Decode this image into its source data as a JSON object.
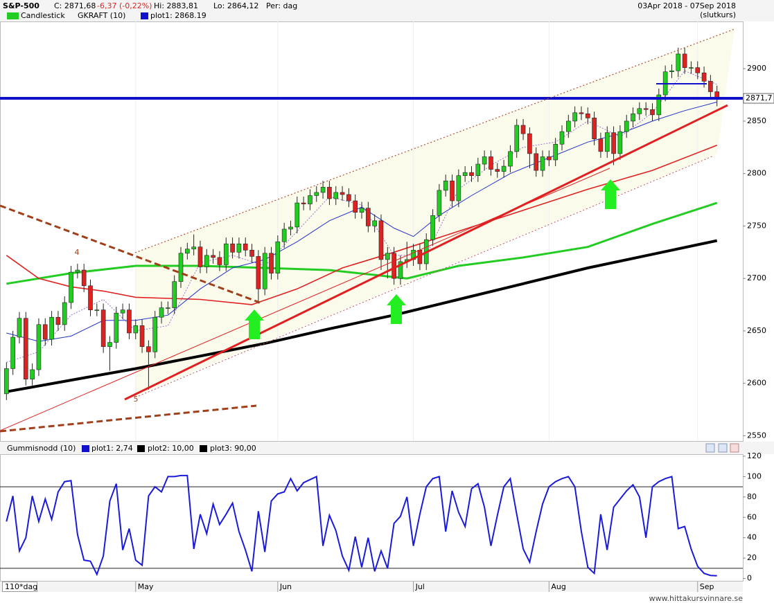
{
  "chart_data": [
    {
      "type": "candlestick",
      "title": "S&P-500",
      "header": {
        "close": "C: 2871,68",
        "change": "-6,37 (-0,22%)",
        "high": "Hi: 2883,81",
        "low": "Lo: 2864,12",
        "period": "Per: dag",
        "range": "03Apr 2018 - 07Sep 2018",
        "price_type": "(slutkurs)"
      },
      "legend": [
        "Candlestick",
        "GKRAFT (10)",
        "plot1: 2868.19"
      ],
      "up_color": "#22cc22",
      "down_color": "#dd2222",
      "open": [
        2590,
        2614,
        2644,
        2662,
        2604,
        2613,
        2656,
        2642,
        2663,
        2656,
        2677,
        2706,
        2708,
        2693,
        2670,
        2670,
        2635,
        2639,
        2667,
        2670,
        2648,
        2655,
        2635,
        2630,
        2663,
        2672,
        2672,
        2697,
        2724,
        2728,
        2730,
        2711,
        2722,
        2720,
        2713,
        2733,
        2725,
        2733,
        2727,
        2721,
        2690,
        2724,
        2705,
        2735,
        2747,
        2749,
        2772,
        2771,
        2779,
        2782,
        2787,
        2776,
        2782,
        2780,
        2774,
        2763,
        2767,
        2750,
        2755,
        2718,
        2724,
        2700,
        2716,
        2718,
        2727,
        2714,
        2737,
        2760,
        2784,
        2793,
        2774,
        2798,
        2801,
        2798,
        2809,
        2816,
        2804,
        2802,
        2807,
        2821,
        2846,
        2838,
        2819,
        2803,
        2816,
        2813,
        2828,
        2840,
        2850,
        2858,
        2857,
        2853,
        2833,
        2821,
        2839,
        2819,
        2840,
        2850,
        2857,
        2862,
        2861,
        2856,
        2875,
        2897,
        2898,
        2914,
        2901,
        2901,
        2896,
        2888,
        2878
      ],
      "high": [
        2620,
        2650,
        2668,
        2668,
        2619,
        2662,
        2662,
        2669,
        2669,
        2683,
        2712,
        2714,
        2714,
        2699,
        2676,
        2676,
        2645,
        2673,
        2676,
        2676,
        2661,
        2661,
        2641,
        2669,
        2678,
        2678,
        2703,
        2730,
        2734,
        2742,
        2736,
        2728,
        2728,
        2726,
        2739,
        2739,
        2739,
        2739,
        2733,
        2727,
        2730,
        2730,
        2741,
        2753,
        2755,
        2778,
        2778,
        2785,
        2788,
        2793,
        2793,
        2788,
        2788,
        2786,
        2780,
        2773,
        2773,
        2761,
        2761,
        2730,
        2730,
        2722,
        2735,
        2733,
        2733,
        2743,
        2766,
        2790,
        2799,
        2799,
        2804,
        2807,
        2807,
        2815,
        2822,
        2822,
        2810,
        2813,
        2827,
        2852,
        2852,
        2844,
        2825,
        2822,
        2822,
        2834,
        2846,
        2856,
        2864,
        2864,
        2863,
        2859,
        2839,
        2845,
        2845,
        2846,
        2856,
        2863,
        2868,
        2868,
        2867,
        2881,
        2903,
        2904,
        2920,
        2920,
        2907,
        2907,
        2902,
        2894,
        2883.81
      ],
      "low": [
        2584,
        2608,
        2638,
        2598,
        2598,
        2607,
        2636,
        2636,
        2650,
        2650,
        2671,
        2700,
        2687,
        2664,
        2664,
        2629,
        2612,
        2633,
        2661,
        2642,
        2642,
        2629,
        2594,
        2624,
        2657,
        2666,
        2666,
        2691,
        2718,
        2722,
        2705,
        2705,
        2714,
        2707,
        2707,
        2719,
        2719,
        2721,
        2715,
        2676,
        2684,
        2699,
        2699,
        2729,
        2741,
        2743,
        2765,
        2765,
        2773,
        2776,
        2770,
        2770,
        2774,
        2768,
        2757,
        2757,
        2744,
        2744,
        2708,
        2700,
        2694,
        2694,
        2710,
        2712,
        2708,
        2708,
        2731,
        2754,
        2778,
        2768,
        2768,
        2792,
        2792,
        2792,
        2803,
        2798,
        2796,
        2796,
        2801,
        2815,
        2832,
        2805,
        2797,
        2797,
        2807,
        2807,
        2822,
        2834,
        2844,
        2851,
        2847,
        2827,
        2815,
        2815,
        2808,
        2813,
        2834,
        2844,
        2851,
        2855,
        2850,
        2850,
        2869,
        2891,
        2892,
        2895,
        2895,
        2890,
        2882,
        2872,
        2864.12
      ],
      "close": [
        2614,
        2644,
        2662,
        2604,
        2613,
        2656,
        2642,
        2663,
        2656,
        2677,
        2706,
        2708,
        2693,
        2670,
        2670,
        2635,
        2639,
        2667,
        2670,
        2648,
        2655,
        2635,
        2630,
        2663,
        2672,
        2672,
        2697,
        2724,
        2728,
        2730,
        2711,
        2722,
        2720,
        2713,
        2733,
        2725,
        2733,
        2727,
        2721,
        2690,
        2724,
        2705,
        2735,
        2747,
        2749,
        2772,
        2771,
        2779,
        2782,
        2787,
        2776,
        2782,
        2780,
        2774,
        2763,
        2767,
        2750,
        2755,
        2718,
        2724,
        2700,
        2716,
        2718,
        2727,
        2714,
        2737,
        2760,
        2784,
        2793,
        2774,
        2798,
        2801,
        2798,
        2809,
        2816,
        2804,
        2802,
        2807,
        2821,
        2846,
        2838,
        2819,
        2803,
        2816,
        2813,
        2828,
        2840,
        2850,
        2858,
        2857,
        2853,
        2833,
        2821,
        2839,
        2819,
        2840,
        2850,
        2857,
        2862,
        2861,
        2856,
        2875,
        2897,
        2898,
        2914,
        2901,
        2901,
        2896,
        2888,
        2878,
        2871.68
      ],
      "xlim": [
        -1,
        114
      ],
      "ylim": [
        2545,
        2945
      ],
      "yticks": [
        2550,
        2600,
        2650,
        2700,
        2750,
        2800,
        2850,
        2900
      ],
      "xticks": [
        {
          "value": 20,
          "label": "May"
        },
        {
          "value": 42,
          "label": "Jun"
        },
        {
          "value": 63,
          "label": "Jul"
        },
        {
          "value": 84,
          "label": "Aug"
        },
        {
          "value": 107,
          "label": "Sep"
        }
      ],
      "x_axis_label": "110*dag",
      "overlays": [
        {
          "color": "#000000",
          "width": 4,
          "x": [
            0,
            10,
            20,
            30,
            40,
            50,
            60,
            70,
            80,
            90,
            100,
            110
          ],
          "values": [
            2592,
            2603,
            2614,
            2626,
            2638,
            2652,
            2665,
            2680,
            2695,
            2710,
            2723,
            2736
          ]
        },
        {
          "color": "#22cc22",
          "width": 3,
          "x": [
            0,
            10,
            20,
            30,
            40,
            50,
            62,
            70,
            80,
            90,
            100,
            110
          ],
          "values": [
            2695,
            2705,
            2712,
            2712,
            2710,
            2708,
            2700,
            2712,
            2720,
            2730,
            2752,
            2772
          ]
        },
        {
          "color": "#e02020",
          "width": 1.6,
          "x": [
            0,
            5,
            10,
            15,
            20,
            30,
            38,
            45,
            52,
            60,
            70,
            80,
            90,
            100,
            110
          ],
          "values": [
            2722,
            2700,
            2692,
            2688,
            2682,
            2680,
            2675,
            2690,
            2710,
            2725,
            2745,
            2765,
            2785,
            2803,
            2827
          ]
        },
        {
          "color": "#2233cc",
          "width": 1,
          "x": [
            0,
            5,
            10,
            15,
            20,
            25,
            30,
            35,
            40,
            45,
            50,
            55,
            60,
            63,
            67,
            72,
            78,
            84,
            90,
            95,
            100,
            105,
            110
          ],
          "values": [
            2648,
            2640,
            2645,
            2660,
            2660,
            2665,
            2690,
            2710,
            2718,
            2735,
            2755,
            2768,
            2748,
            2740,
            2760,
            2779,
            2800,
            2815,
            2830,
            2838,
            2850,
            2860,
            2868.19
          ]
        },
        {
          "color": "#a070d0",
          "width": 1,
          "dash": true,
          "x": [
            0,
            5,
            10,
            15,
            20,
            25,
            30,
            35,
            40,
            45,
            50,
            55,
            60,
            65,
            70,
            75,
            80,
            85,
            90,
            95,
            100,
            105,
            110
          ],
          "values": [
            2620,
            2630,
            2665,
            2680,
            2650,
            2655,
            2715,
            2722,
            2712,
            2745,
            2778,
            2770,
            2722,
            2722,
            2785,
            2808,
            2825,
            2830,
            2850,
            2835,
            2858,
            2898,
            2885
          ]
        }
      ],
      "last_price": {
        "value": 2871.7,
        "label": "2871,7"
      },
      "annotations": [
        "4",
        "5"
      ],
      "footer": "www.hittakursvinnare.se"
    },
    {
      "type": "line",
      "title": "Gummisnodd (10)",
      "legend": [
        "plot1: 2,74",
        "plot2: 10,00",
        "plot3: 90,00"
      ],
      "color": "#1a1adb",
      "values": [
        56,
        81,
        27,
        40,
        81,
        56,
        78,
        58,
        85,
        95,
        96,
        43,
        18,
        17,
        4,
        22,
        76,
        93,
        28,
        49,
        18,
        13,
        81,
        90,
        85,
        100,
        100,
        101,
        101,
        29,
        63,
        44,
        73,
        53,
        63,
        74,
        46,
        28,
        7,
        66,
        26,
        76,
        83,
        85,
        98,
        86,
        94,
        97,
        100,
        32,
        62,
        47,
        22,
        8,
        41,
        11,
        40,
        7,
        27,
        10,
        54,
        61,
        80,
        32,
        63,
        90,
        98,
        100,
        46,
        86,
        65,
        51,
        88,
        93,
        70,
        32,
        62,
        90,
        98,
        63,
        29,
        16,
        46,
        73,
        90,
        95,
        98,
        100,
        90,
        46,
        11,
        5,
        63,
        28,
        70,
        78,
        86,
        92,
        80,
        40,
        90,
        95,
        98,
        100,
        49,
        51,
        29,
        12,
        5,
        3,
        2.74
      ],
      "levels": [
        10,
        90
      ],
      "ylim": [
        -3,
        122
      ],
      "yticks": [
        0,
        20,
        40,
        60,
        80,
        100,
        120
      ]
    }
  ]
}
